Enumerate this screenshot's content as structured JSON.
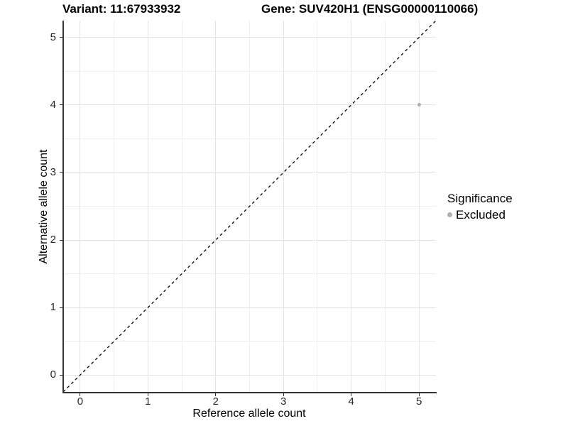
{
  "chart_data": {
    "type": "scatter",
    "titles": {
      "left": "Variant: 11:67933932",
      "right": "Gene: SUV420H1 (ENSG00000110066)"
    },
    "xlabel": "Reference allele count",
    "ylabel": "Alternative allele count",
    "xlim": [
      -0.25,
      5.25
    ],
    "ylim": [
      -0.25,
      5.25
    ],
    "x_ticks": [
      0,
      1,
      2,
      3,
      4,
      5
    ],
    "y_ticks": [
      0,
      1,
      2,
      3,
      4,
      5
    ],
    "x_minor_ticks": [
      0.5,
      1.5,
      2.5,
      3.5,
      4.5
    ],
    "y_minor_ticks": [
      0.5,
      1.5,
      2.5,
      3.5,
      4.5
    ],
    "grid": "on",
    "points": [
      {
        "x": 5,
        "y": 4,
        "series": "Excluded"
      }
    ],
    "reference_line": {
      "type": "identity",
      "style": "dashed",
      "from": [
        -0.25,
        -0.25
      ],
      "to": [
        5.25,
        5.25
      ],
      "color": "#000000"
    },
    "legend": {
      "title": "Significance",
      "position": "right",
      "entries": [
        {
          "label": "Excluded",
          "color": "#b0b0b0",
          "shape": "circle"
        }
      ]
    },
    "colors": {
      "point": "#b0b0b0",
      "grid_major": "#e4e4e4",
      "grid_minor": "#efefef",
      "axis": "#333333",
      "text": "#000000"
    }
  }
}
